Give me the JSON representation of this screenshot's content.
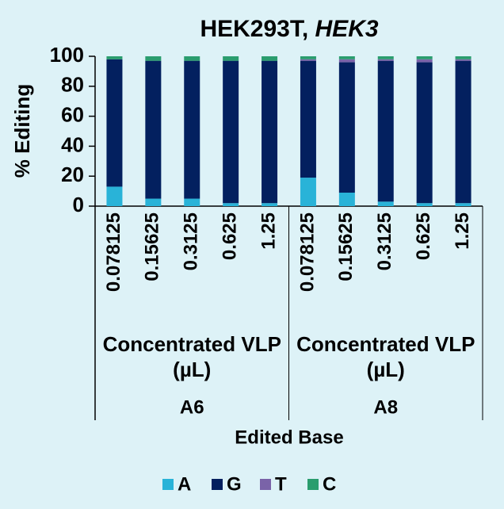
{
  "chart_data": {
    "type": "stacked_bar",
    "title": [
      "HEK293T,",
      "HEK3"
    ],
    "y_label": "% Editing",
    "x_label": "Edited Base",
    "categories": [
      "0.078125",
      "0.15625",
      "0.3125",
      "0.625",
      "1.25",
      "0.078125",
      "0.15625",
      "0.3125",
      "0.625",
      "1.25"
    ],
    "groups": [
      {
        "name": "A6",
        "label": "Concentrated VLP (µL)"
      },
      {
        "name": "A8",
        "label": "Concentrated VLP (µL)"
      }
    ],
    "series": [
      {
        "name": "A",
        "color": "#29b3d8",
        "values": [
          13,
          5,
          5,
          2,
          2,
          19,
          9,
          3,
          2,
          2
        ]
      },
      {
        "name": "G",
        "color": "#03205f",
        "values": [
          85,
          92,
          92,
          95,
          95,
          78,
          87,
          94,
          94,
          95
        ]
      },
      {
        "name": "T",
        "color": "#7a63a8",
        "values": [
          0,
          0,
          0,
          0,
          0,
          1,
          2,
          1,
          2,
          1
        ]
      },
      {
        "name": "C",
        "color": "#2a9d6e",
        "values": [
          2,
          3,
          3,
          3,
          3,
          2,
          2,
          2,
          2,
          2
        ]
      }
    ],
    "ylim": [
      0,
      100
    ],
    "yticks": [
      0,
      20,
      40,
      60,
      80,
      100
    ],
    "grid": false
  }
}
